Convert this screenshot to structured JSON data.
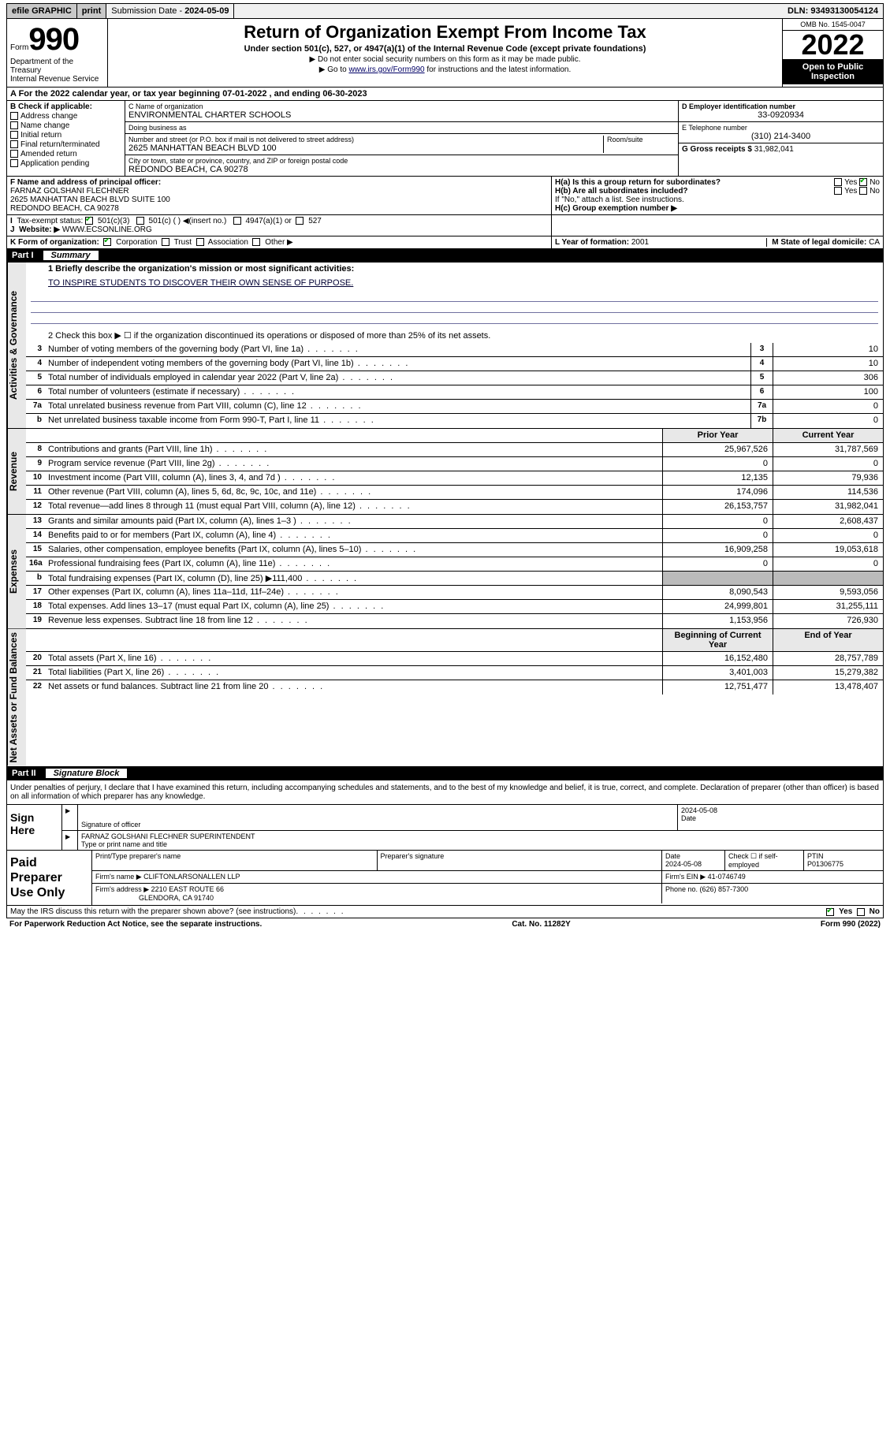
{
  "topbar": {
    "efile": "efile GRAPHIC",
    "print": "print",
    "sub_label": "Submission Date - ",
    "sub_date": "2024-05-09",
    "dln_label": "DLN: ",
    "dln": "93493130054124"
  },
  "header": {
    "form_word": "Form",
    "form_num": "990",
    "dept1": "Department of the Treasury",
    "dept2": "Internal Revenue Service",
    "title": "Return of Organization Exempt From Income Tax",
    "subtitle": "Under section 501(c), 527, or 4947(a)(1) of the Internal Revenue Code (except private foundations)",
    "note1": "▶ Do not enter social security numbers on this form as it may be made public.",
    "note2_pre": "▶ Go to ",
    "note2_link": "www.irs.gov/Form990",
    "note2_post": " for instructions and the latest information.",
    "omb": "OMB No. 1545-0047",
    "year": "2022",
    "open": "Open to Public Inspection"
  },
  "row_a": "A For the 2022 calendar year, or tax year beginning 07-01-2022   , and ending 06-30-2023",
  "sectionB": {
    "title": "B Check if applicable:",
    "opts": [
      "Address change",
      "Name change",
      "Initial return",
      "Final return/terminated",
      "Amended return",
      "Application pending"
    ]
  },
  "sectionC": {
    "name_lbl": "C Name of organization",
    "name": "ENVIRONMENTAL CHARTER SCHOOLS",
    "dba_lbl": "Doing business as",
    "dba": "",
    "addr_lbl": "Number and street (or P.O. box if mail is not delivered to street address)",
    "room_lbl": "Room/suite",
    "addr": "2625 MANHATTAN BEACH BLVD 100",
    "city_lbl": "City or town, state or province, country, and ZIP or foreign postal code",
    "city": "REDONDO BEACH, CA  90278"
  },
  "sectionD": {
    "ein_lbl": "D Employer identification number",
    "ein": "33-0920934",
    "phone_lbl": "E Telephone number",
    "phone": "(310) 214-3400",
    "gross_lbl": "G Gross receipts $ ",
    "gross": "31,982,041"
  },
  "sectionF": {
    "lbl": "F Name and address of principal officer:",
    "name": "FARNAZ GOLSHANI FLECHNER",
    "addr1": "2625 MANHATTAN BEACH BLVD SUITE 100",
    "addr2": "REDONDO BEACH, CA  90278"
  },
  "sectionH": {
    "ha": "H(a)  Is this a group return for subordinates?",
    "hb": "H(b)  Are all subordinates included?",
    "hb_note": "If \"No,\" attach a list. See instructions.",
    "hc": "H(c)  Group exemption number ▶",
    "yes": "Yes",
    "no": "No"
  },
  "rowI": {
    "lbl": "Tax-exempt status:",
    "opts": [
      "501(c)(3)",
      "501(c) (  ) ◀(insert no.)",
      "4947(a)(1) or",
      "527"
    ]
  },
  "rowJ": {
    "lbl": "Website: ▶",
    "val": "WWW.ECSONLINE.ORG"
  },
  "rowK": {
    "lbl": "K Form of organization:",
    "opts": [
      "Corporation",
      "Trust",
      "Association",
      "Other ▶"
    ],
    "L_lbl": "L Year of formation: ",
    "L_val": "2001",
    "M_lbl": "M State of legal domicile: ",
    "M_val": "CA"
  },
  "partI": {
    "num": "Part I",
    "title": "Summary"
  },
  "mission": {
    "q": "1  Briefly describe the organization's mission or most significant activities:",
    "text": "TO INSPIRE STUDENTS TO DISCOVER THEIR OWN SENSE OF PURPOSE."
  },
  "line2": "2   Check this box ▶ ☐  if the organization discontinued its operations or disposed of more than 25% of its net assets.",
  "tabs": {
    "gov": "Activities & Governance",
    "rev": "Revenue",
    "exp": "Expenses",
    "net": "Net Assets or Fund Balances"
  },
  "hdr_prior": "Prior Year",
  "hdr_curr": "Current Year",
  "hdr_beg": "Beginning of Current Year",
  "hdr_end": "End of Year",
  "gov_rows": [
    {
      "n": "3",
      "t": "Number of voting members of the governing body (Part VI, line 1a)",
      "box": "3",
      "v": "10"
    },
    {
      "n": "4",
      "t": "Number of independent voting members of the governing body (Part VI, line 1b)",
      "box": "4",
      "v": "10"
    },
    {
      "n": "5",
      "t": "Total number of individuals employed in calendar year 2022 (Part V, line 2a)",
      "box": "5",
      "v": "306"
    },
    {
      "n": "6",
      "t": "Total number of volunteers (estimate if necessary)",
      "box": "6",
      "v": "100"
    },
    {
      "n": "7a",
      "t": "Total unrelated business revenue from Part VIII, column (C), line 12",
      "box": "7a",
      "v": "0"
    },
    {
      "n": "b",
      "t": "Net unrelated business taxable income from Form 990-T, Part I, line 11",
      "box": "7b",
      "v": "0"
    }
  ],
  "rev_rows": [
    {
      "n": "8",
      "t": "Contributions and grants (Part VIII, line 1h)",
      "p": "25,967,526",
      "c": "31,787,569"
    },
    {
      "n": "9",
      "t": "Program service revenue (Part VIII, line 2g)",
      "p": "0",
      "c": "0"
    },
    {
      "n": "10",
      "t": "Investment income (Part VIII, column (A), lines 3, 4, and 7d )",
      "p": "12,135",
      "c": "79,936"
    },
    {
      "n": "11",
      "t": "Other revenue (Part VIII, column (A), lines 5, 6d, 8c, 9c, 10c, and 11e)",
      "p": "174,096",
      "c": "114,536"
    },
    {
      "n": "12",
      "t": "Total revenue—add lines 8 through 11 (must equal Part VIII, column (A), line 12)",
      "p": "26,153,757",
      "c": "31,982,041"
    }
  ],
  "exp_rows": [
    {
      "n": "13",
      "t": "Grants and similar amounts paid (Part IX, column (A), lines 1–3 )",
      "p": "0",
      "c": "2,608,437"
    },
    {
      "n": "14",
      "t": "Benefits paid to or for members (Part IX, column (A), line 4)",
      "p": "0",
      "c": "0"
    },
    {
      "n": "15",
      "t": "Salaries, other compensation, employee benefits (Part IX, column (A), lines 5–10)",
      "p": "16,909,258",
      "c": "19,053,618"
    },
    {
      "n": "16a",
      "t": "Professional fundraising fees (Part IX, column (A), line 11e)",
      "p": "0",
      "c": "0"
    },
    {
      "n": "b",
      "t": "Total fundraising expenses (Part IX, column (D), line 25) ▶111,400",
      "p": "",
      "c": "",
      "noval": true
    },
    {
      "n": "17",
      "t": "Other expenses (Part IX, column (A), lines 11a–11d, 11f–24e)",
      "p": "8,090,543",
      "c": "9,593,056"
    },
    {
      "n": "18",
      "t": "Total expenses. Add lines 13–17 (must equal Part IX, column (A), line 25)",
      "p": "24,999,801",
      "c": "31,255,111"
    },
    {
      "n": "19",
      "t": "Revenue less expenses. Subtract line 18 from line 12",
      "p": "1,153,956",
      "c": "726,930"
    }
  ],
  "net_rows": [
    {
      "n": "20",
      "t": "Total assets (Part X, line 16)",
      "p": "16,152,480",
      "c": "28,757,789"
    },
    {
      "n": "21",
      "t": "Total liabilities (Part X, line 26)",
      "p": "3,401,003",
      "c": "15,279,382"
    },
    {
      "n": "22",
      "t": "Net assets or fund balances. Subtract line 21 from line 20",
      "p": "12,751,477",
      "c": "13,478,407"
    }
  ],
  "partII": {
    "num": "Part II",
    "title": "Signature Block"
  },
  "perjury": "Under penalties of perjury, I declare that I have examined this return, including accompanying schedules and statements, and to the best of my knowledge and belief, it is true, correct, and complete. Declaration of preparer (other than officer) is based on all information of which preparer has any knowledge.",
  "sign": {
    "here": "Sign Here",
    "sig_lbl": "Signature of officer",
    "date_lbl": "Date",
    "date": "2024-05-08",
    "name": "FARNAZ GOLSHANI FLECHNER  SUPERINTENDENT",
    "name_lbl": "Type or print name and title"
  },
  "prep": {
    "title": "Paid Preparer Use Only",
    "cols": [
      "Print/Type preparer's name",
      "Preparer's signature",
      "Date",
      "Check ☐ if self-employed",
      "PTIN"
    ],
    "date": "2024-05-08",
    "ptin": "P01306775",
    "firm_name_lbl": "Firm's name    ▶",
    "firm_name": "CLIFTONLARSONALLEN LLP",
    "firm_ein_lbl": "Firm's EIN ▶",
    "firm_ein": "41-0746749",
    "firm_addr_lbl": "Firm's address ▶",
    "firm_addr1": "2210 EAST ROUTE 66",
    "firm_addr2": "GLENDORA, CA  91740",
    "phone_lbl": "Phone no. ",
    "phone": "(626) 857-7300"
  },
  "footer": {
    "discuss": "May the IRS discuss this return with the preparer shown above? (see instructions)",
    "yes": "Yes",
    "no": "No",
    "pra": "For Paperwork Reduction Act Notice, see the separate instructions.",
    "cat": "Cat. No. 11282Y",
    "form": "Form 990 (2022)"
  }
}
